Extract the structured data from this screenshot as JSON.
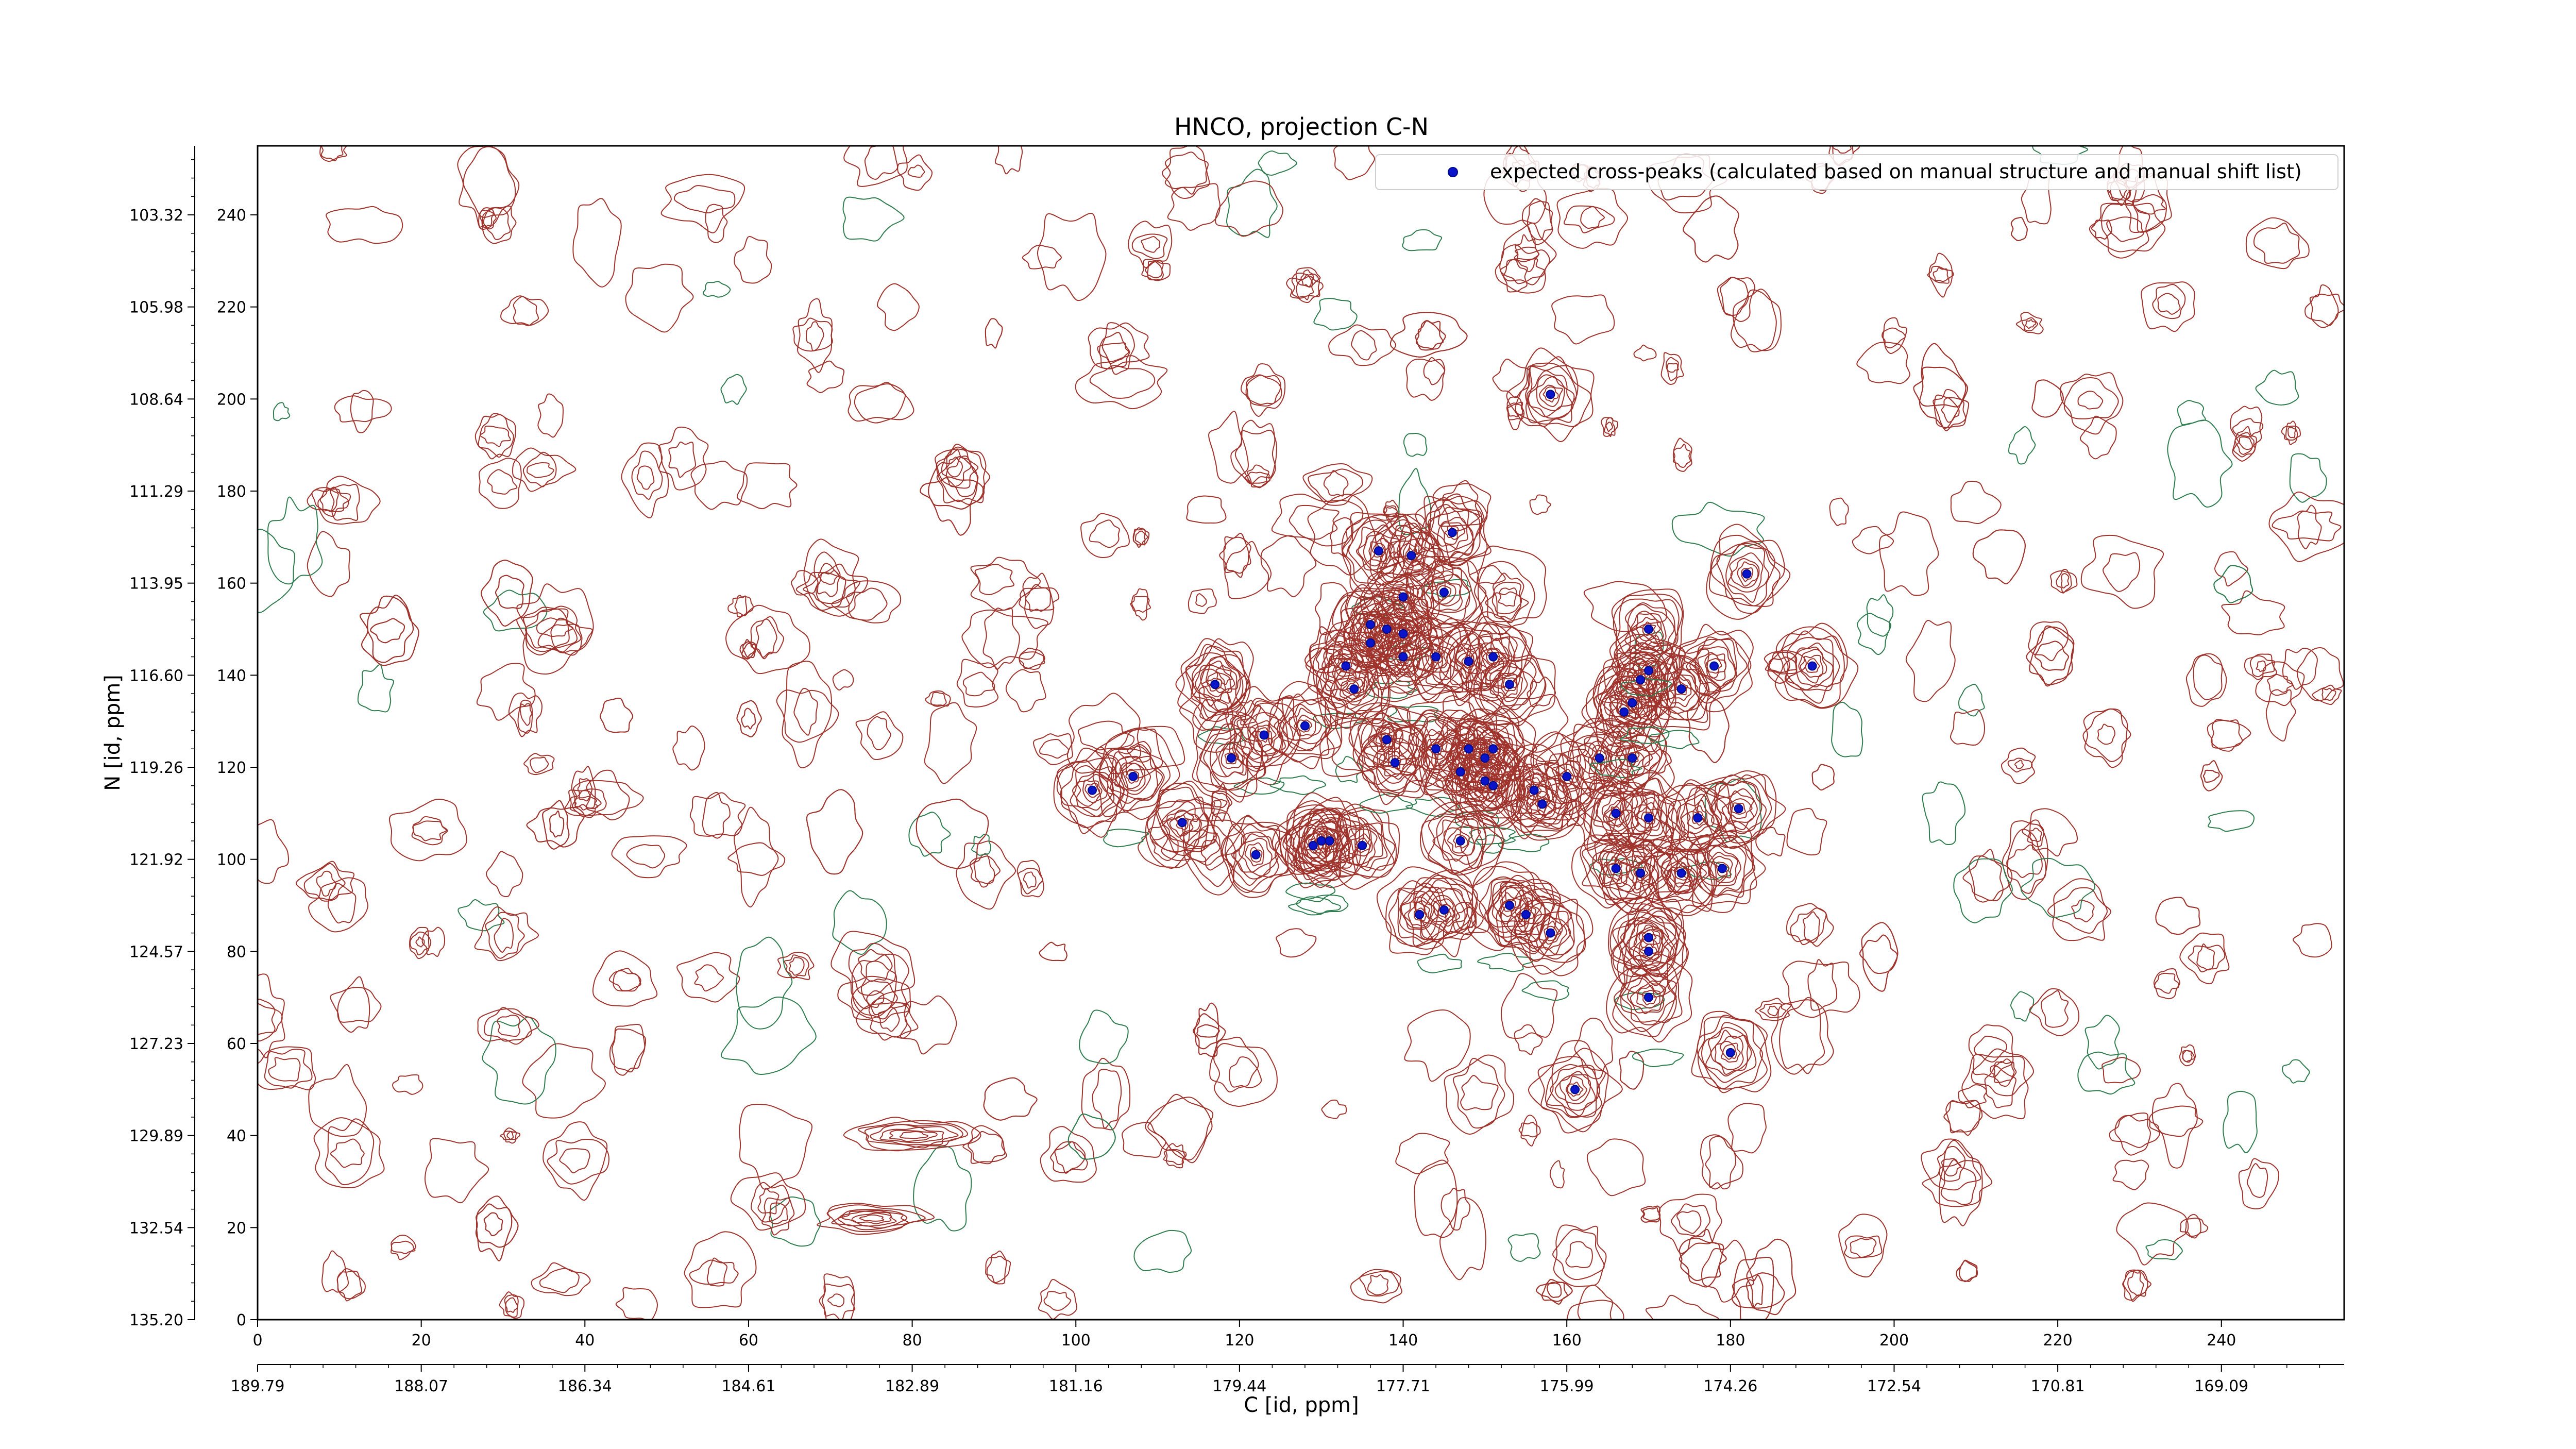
{
  "chart_data": {
    "type": "scatter",
    "title": "HNCO, projection C-N",
    "xlabel": "C [id, ppm]",
    "ylabel": "N [id, ppm]",
    "xlim": [
      0,
      255
    ],
    "ylim": [
      0,
      255
    ],
    "x_ticks": [
      "0",
      "20",
      "40",
      "60",
      "80",
      "100",
      "120",
      "140",
      "160",
      "180",
      "200",
      "220",
      "240"
    ],
    "x_tick_values": [
      0,
      20,
      40,
      60,
      80,
      100,
      120,
      140,
      160,
      180,
      200,
      220,
      240
    ],
    "y_ticks": [
      "0",
      "20",
      "40",
      "60",
      "80",
      "100",
      "120",
      "140",
      "160",
      "180",
      "200",
      "220",
      "240"
    ],
    "y_tick_values": [
      0,
      20,
      40,
      60,
      80,
      100,
      120,
      140,
      160,
      180,
      200,
      220,
      240
    ],
    "x_ppm_ticks": [
      "189.79",
      "188.07",
      "186.34",
      "184.61",
      "182.89",
      "181.16",
      "179.44",
      "177.71",
      "175.99",
      "174.26",
      "172.54",
      "170.81",
      "169.09"
    ],
    "y_ppm_ticks": [
      "135.20",
      "132.54",
      "129.89",
      "127.23",
      "124.57",
      "121.92",
      "119.26",
      "116.60",
      "113.95",
      "111.29",
      "108.64",
      "105.98",
      "103.32"
    ],
    "legend": {
      "label": "expected cross-peaks (calculated based on manual structure and manual shift list)",
      "position": "top-right"
    },
    "colors": {
      "positive_contour": "#a0332c",
      "negative_contour": "#2e7d4f",
      "peak_marker": "#0a14c8"
    },
    "grid": false,
    "series": [
      {
        "name": "expected cross-peaks (calculated based on manual structure and manual shift list)",
        "points": [
          [
            158,
            201
          ],
          [
            137,
            167
          ],
          [
            141,
            166
          ],
          [
            146,
            171
          ],
          [
            145,
            158
          ],
          [
            140,
            157
          ],
          [
            136,
            151
          ],
          [
            138,
            150
          ],
          [
            140,
            149
          ],
          [
            136,
            147
          ],
          [
            140,
            144
          ],
          [
            144,
            144
          ],
          [
            148,
            143
          ],
          [
            151,
            144
          ],
          [
            133,
            142
          ],
          [
            134,
            137
          ],
          [
            153,
            138
          ],
          [
            117,
            138
          ],
          [
            123,
            127
          ],
          [
            119,
            122
          ],
          [
            128,
            129
          ],
          [
            102,
            115
          ],
          [
            107,
            118
          ],
          [
            113,
            108
          ],
          [
            122,
            101
          ],
          [
            129,
            103
          ],
          [
            130,
            104
          ],
          [
            131,
            104
          ],
          [
            135,
            103
          ],
          [
            138,
            126
          ],
          [
            139,
            121
          ],
          [
            144,
            124
          ],
          [
            148,
            124
          ],
          [
            151,
            124
          ],
          [
            150,
            122
          ],
          [
            147,
            119
          ],
          [
            150,
            117
          ],
          [
            151,
            116
          ],
          [
            156,
            115
          ],
          [
            157,
            112
          ],
          [
            160,
            118
          ],
          [
            164,
            122
          ],
          [
            168,
            122
          ],
          [
            167,
            132
          ],
          [
            168,
            134
          ],
          [
            169,
            139
          ],
          [
            170,
            141
          ],
          [
            174,
            137
          ],
          [
            178,
            142
          ],
          [
            170,
            150
          ],
          [
            182,
            162
          ],
          [
            190,
            142
          ],
          [
            166,
            110
          ],
          [
            170,
            109
          ],
          [
            176,
            109
          ],
          [
            181,
            111
          ],
          [
            147,
            104
          ],
          [
            166,
            98
          ],
          [
            169,
            97
          ],
          [
            174,
            97
          ],
          [
            179,
            98
          ],
          [
            142,
            88
          ],
          [
            145,
            89
          ],
          [
            153,
            90
          ],
          [
            155,
            88
          ],
          [
            158,
            84
          ],
          [
            170,
            83
          ],
          [
            170,
            80
          ],
          [
            170,
            70
          ],
          [
            161,
            50
          ],
          [
            180,
            58
          ]
        ]
      }
    ]
  }
}
